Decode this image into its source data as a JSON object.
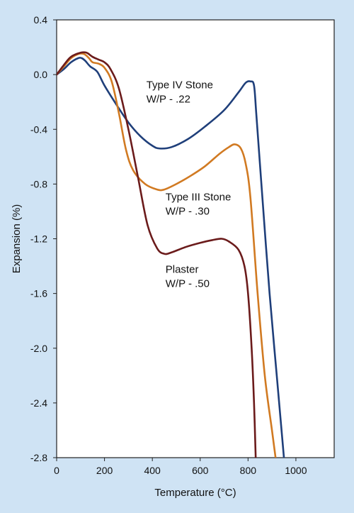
{
  "chart_data": {
    "type": "line",
    "xlabel": "Temperature (°C)",
    "ylabel": "Expansion (%)",
    "xlim": [
      0,
      1160
    ],
    "ylim": [
      -2.8,
      0.4
    ],
    "x_ticks": [
      0,
      200,
      400,
      600,
      800,
      1000
    ],
    "y_ticks": [
      0.4,
      0.0,
      -0.4,
      -0.8,
      -1.2,
      -1.6,
      -2.0,
      -2.4,
      -2.8
    ],
    "x_tick_labels": [
      "0",
      "200",
      "400",
      "600",
      "800",
      "1000"
    ],
    "y_tick_labels": [
      "0.4",
      "0.0",
      "-0.4",
      "-0.8",
      "-1.2",
      "-1.6",
      "-2.0",
      "-2.4",
      "-2.8"
    ],
    "grid": false,
    "series": [
      {
        "color": "#1f3f7a",
        "points": [
          [
            0,
            0
          ],
          [
            30,
            0.04
          ],
          [
            60,
            0.09
          ],
          [
            90,
            0.12
          ],
          [
            105,
            0.12
          ],
          [
            120,
            0.1
          ],
          [
            140,
            0.06
          ],
          [
            170,
            0.02
          ],
          [
            200,
            -0.08
          ],
          [
            250,
            -0.22
          ],
          [
            300,
            -0.35
          ],
          [
            350,
            -0.45
          ],
          [
            400,
            -0.52
          ],
          [
            430,
            -0.54
          ],
          [
            480,
            -0.53
          ],
          [
            550,
            -0.47
          ],
          [
            620,
            -0.38
          ],
          [
            700,
            -0.26
          ],
          [
            760,
            -0.13
          ],
          [
            790,
            -0.06
          ],
          [
            810,
            -0.05
          ],
          [
            825,
            -0.08
          ],
          [
            835,
            -0.3
          ],
          [
            860,
            -0.9
          ],
          [
            890,
            -1.6
          ],
          [
            920,
            -2.2
          ],
          [
            950,
            -2.8
          ]
        ]
      },
      {
        "color": "#d17a22",
        "points": [
          [
            0,
            0
          ],
          [
            30,
            0.06
          ],
          [
            60,
            0.12
          ],
          [
            90,
            0.15
          ],
          [
            115,
            0.15
          ],
          [
            135,
            0.12
          ],
          [
            150,
            0.09
          ],
          [
            175,
            0.08
          ],
          [
            200,
            0.05
          ],
          [
            230,
            -0.05
          ],
          [
            260,
            -0.28
          ],
          [
            290,
            -0.55
          ],
          [
            320,
            -0.7
          ],
          [
            370,
            -0.8
          ],
          [
            420,
            -0.84
          ],
          [
            450,
            -0.84
          ],
          [
            500,
            -0.8
          ],
          [
            560,
            -0.74
          ],
          [
            620,
            -0.67
          ],
          [
            680,
            -0.58
          ],
          [
            720,
            -0.53
          ],
          [
            745,
            -0.51
          ],
          [
            770,
            -0.54
          ],
          [
            790,
            -0.65
          ],
          [
            810,
            -0.9
          ],
          [
            840,
            -1.6
          ],
          [
            870,
            -2.2
          ],
          [
            900,
            -2.6
          ],
          [
            915,
            -2.8
          ]
        ]
      },
      {
        "color": "#6b1b1b",
        "points": [
          [
            0,
            0
          ],
          [
            30,
            0.07
          ],
          [
            60,
            0.13
          ],
          [
            100,
            0.16
          ],
          [
            125,
            0.16
          ],
          [
            150,
            0.13
          ],
          [
            175,
            0.11
          ],
          [
            200,
            0.09
          ],
          [
            225,
            0.04
          ],
          [
            260,
            -0.1
          ],
          [
            300,
            -0.4
          ],
          [
            340,
            -0.75
          ],
          [
            380,
            -1.1
          ],
          [
            420,
            -1.27
          ],
          [
            450,
            -1.31
          ],
          [
            480,
            -1.3
          ],
          [
            540,
            -1.26
          ],
          [
            600,
            -1.23
          ],
          [
            650,
            -1.21
          ],
          [
            690,
            -1.2
          ],
          [
            720,
            -1.22
          ],
          [
            760,
            -1.28
          ],
          [
            785,
            -1.4
          ],
          [
            800,
            -1.6
          ],
          [
            815,
            -2.0
          ],
          [
            825,
            -2.4
          ],
          [
            832,
            -2.8
          ]
        ]
      }
    ],
    "annotations": [
      {
        "lines": [
          "Type IV Stone",
          "W/P - .22"
        ],
        "x": 375,
        "y": -0.1
      },
      {
        "lines": [
          "Type III Stone",
          "W/P - .30"
        ],
        "x": 455,
        "y": -0.92
      },
      {
        "lines": [
          "Plaster",
          "W/P - .50"
        ],
        "x": 455,
        "y": -1.45
      }
    ]
  }
}
